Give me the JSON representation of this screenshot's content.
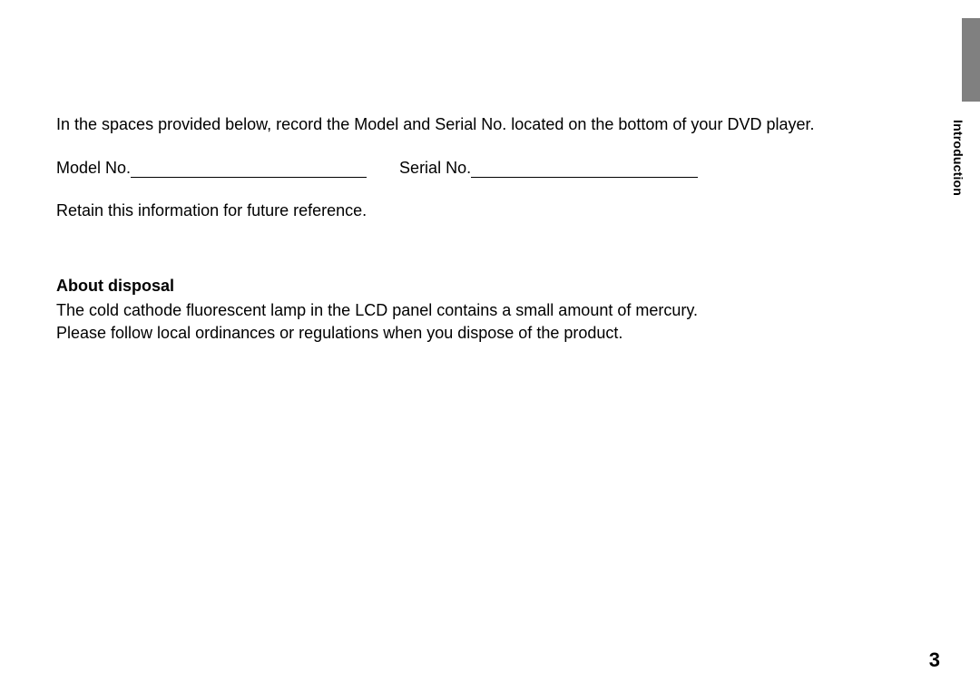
{
  "intro": "In the spaces provided below, record the Model and Serial No. located on the bottom of your DVD player.",
  "fields": {
    "model_label": "Model No.",
    "serial_label": "Serial No."
  },
  "retain": "Retain this information for future reference.",
  "section": {
    "title": "About disposal",
    "line1": "The cold cathode fluorescent lamp in the LCD panel contains a small amount of mercury.",
    "line2": "Please follow local ordinances or regulations when you dispose of the product."
  },
  "side_label": "Introduction",
  "page_number": "3",
  "colors": {
    "tab_bg": "#808080",
    "text": "#000000",
    "page_bg": "#ffffff"
  }
}
